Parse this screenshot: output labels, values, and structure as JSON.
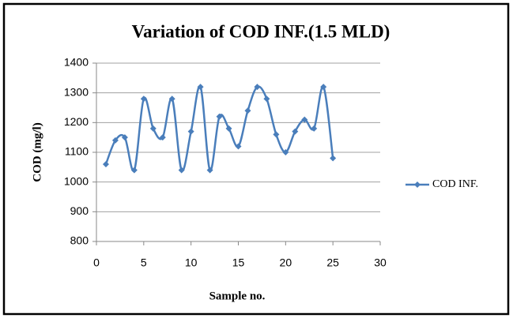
{
  "chart_data": {
    "type": "line",
    "title": "Variation of COD INF.(1.5 MLD)",
    "x_label": "Sample no.",
    "y_label": "COD (mg/l)",
    "x": [
      1,
      2,
      3,
      4,
      5,
      6,
      7,
      8,
      9,
      10,
      11,
      12,
      13,
      14,
      15,
      16,
      17,
      18,
      19,
      20,
      21,
      22,
      23,
      24,
      25
    ],
    "series": [
      {
        "name": "COD INF.",
        "color": "#4a7ebb",
        "values": [
          1060,
          1140,
          1150,
          1040,
          1280,
          1180,
          1150,
          1280,
          1040,
          1170,
          1320,
          1040,
          1220,
          1180,
          1120,
          1240,
          1320,
          1280,
          1160,
          1100,
          1170,
          1210,
          1180,
          1320,
          1080
        ]
      }
    ],
    "xlim": [
      0,
      30
    ],
    "xticks": [
      0,
      5,
      10,
      15,
      20,
      25,
      30
    ],
    "ylim": [
      800,
      1400
    ],
    "yticks": [
      800,
      900,
      1000,
      1100,
      1200,
      1300,
      1400
    ],
    "grid": true,
    "smooth": true,
    "legend": "right"
  }
}
